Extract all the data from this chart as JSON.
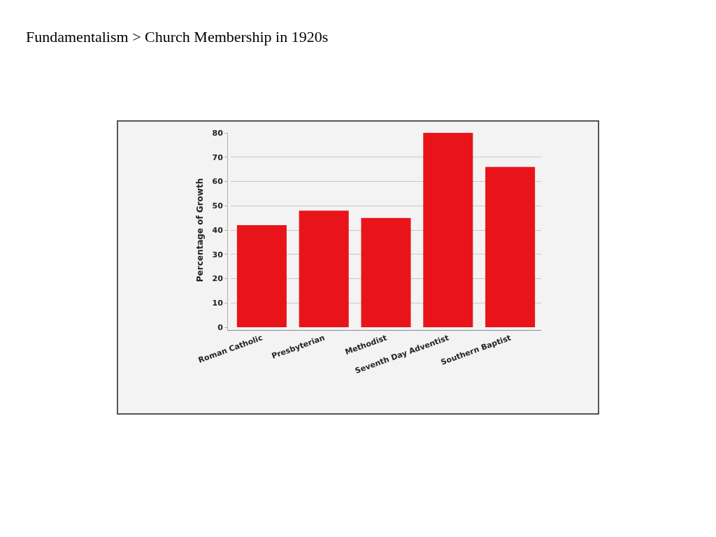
{
  "chart_data": {
    "type": "bar",
    "title": "Fundamentalism > Church Membership in 1920s",
    "ylabel": "Percentage of Growth",
    "categories": [
      "Roman Catholic",
      "Presbyterian",
      "Methodist",
      "Seventh Day Adventist",
      "Southern Baptist"
    ],
    "values": [
      42,
      48,
      45,
      80,
      66
    ],
    "color": "#e8141a",
    "ylim": [
      0,
      80
    ],
    "yticks": [
      0,
      10,
      20,
      30,
      40,
      50,
      60,
      70,
      80
    ],
    "grid": "y"
  }
}
